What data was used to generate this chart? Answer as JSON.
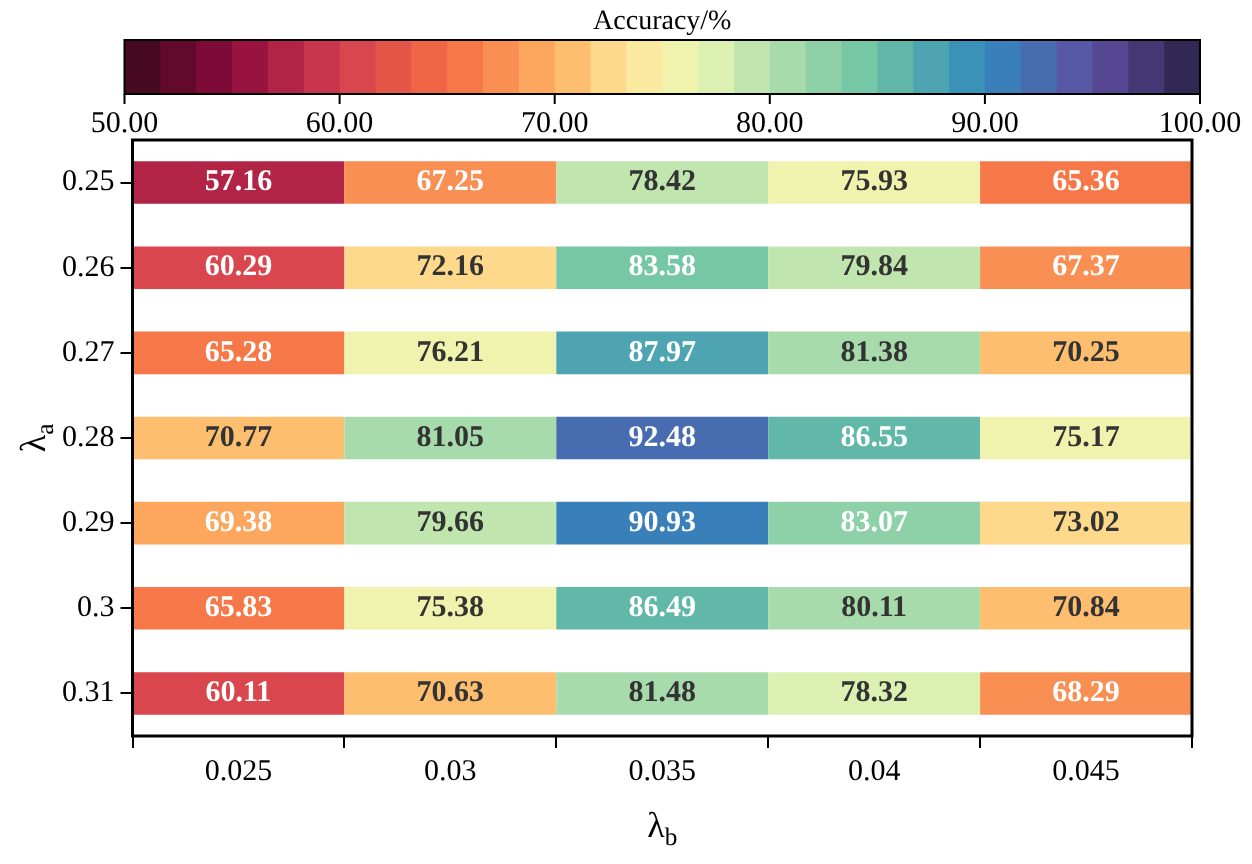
{
  "chart_data": {
    "type": "heatmap",
    "xlabel": "λ$_{b}$",
    "ylabel": "λ$_{a}$",
    "clabel": "Accuracy/%",
    "categories": [
      "0.025",
      "0.03",
      "0.035",
      "0.04",
      "0.045"
    ],
    "y_categories": [
      "0.25",
      "0.26",
      "0.27",
      "0.28",
      "0.29",
      "0.3",
      "0.31"
    ],
    "cells": [
      [
        57.16,
        67.25,
        78.42,
        75.93,
        65.36
      ],
      [
        60.29,
        72.16,
        83.58,
        79.84,
        67.37
      ],
      [
        65.28,
        76.21,
        87.97,
        81.38,
        70.25
      ],
      [
        70.77,
        81.05,
        92.48,
        86.55,
        75.17
      ],
      [
        69.38,
        79.66,
        90.93,
        83.07,
        73.02
      ],
      [
        65.83,
        75.38,
        86.49,
        80.11,
        70.84
      ],
      [
        60.11,
        70.63,
        81.48,
        78.32,
        68.29
      ]
    ],
    "clim": [
      50,
      100
    ],
    "cticks": [
      {
        "value": 50,
        "label": "50.00"
      },
      {
        "value": 60,
        "label": "60.00"
      },
      {
        "value": 70,
        "label": "70.00"
      },
      {
        "value": 80,
        "label": "80.00"
      },
      {
        "value": 90,
        "label": "90.00"
      },
      {
        "value": 100,
        "label": "100.00"
      }
    ],
    "data_labels": true
  }
}
